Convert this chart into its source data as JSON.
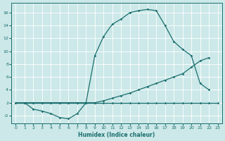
{
  "xlabel": "Humidex (Indice chaleur)",
  "bg_color": "#cce8e8",
  "grid_color": "#ffffff",
  "line_color": "#1a6e6e",
  "xlim": [
    -0.5,
    23.5
  ],
  "ylim": [
    -1.2,
    17.5
  ],
  "xticks": [
    0,
    1,
    2,
    3,
    4,
    5,
    6,
    7,
    8,
    9,
    10,
    11,
    12,
    13,
    14,
    15,
    16,
    17,
    18,
    19,
    20,
    21,
    22,
    23
  ],
  "yticks": [
    0,
    2,
    4,
    6,
    8,
    10,
    12,
    14,
    16
  ],
  "ytick_labels": [
    "-0",
    "2",
    "4",
    "6",
    "8",
    "10",
    "12",
    "14",
    "16"
  ],
  "c1x": [
    0,
    1,
    2,
    3,
    4,
    5,
    6,
    7,
    8,
    9,
    10,
    11,
    12,
    13,
    14,
    15,
    16,
    17,
    18,
    19,
    20,
    21,
    22,
    23
  ],
  "c1y": [
    2.0,
    2.0,
    2.0,
    2.0,
    2.0,
    2.0,
    2.0,
    2.0,
    2.0,
    2.0,
    2.0,
    2.0,
    2.0,
    2.0,
    2.0,
    2.0,
    2.0,
    2.0,
    2.0,
    2.0,
    2.0,
    2.0,
    2.0,
    2.0
  ],
  "c2x": [
    0,
    1,
    2,
    3,
    4,
    5,
    6,
    7,
    8,
    9,
    10,
    11,
    12,
    13,
    14,
    15,
    16,
    17,
    18,
    19,
    20,
    21,
    22
  ],
  "c2y": [
    2.0,
    2.0,
    2.0,
    2.0,
    2.0,
    2.0,
    2.0,
    2.0,
    2.0,
    2.0,
    2.3,
    2.7,
    3.1,
    3.5,
    4.0,
    4.5,
    5.0,
    5.5,
    6.0,
    6.5,
    7.5,
    8.5,
    9.0
  ],
  "c3x": [
    1,
    2,
    3,
    4,
    5,
    6,
    7,
    8,
    9,
    10,
    11,
    12,
    13,
    14,
    15,
    16,
    17,
    18,
    19,
    20,
    21,
    22
  ],
  "c3y": [
    2.0,
    1.0,
    0.7,
    0.3,
    -0.3,
    -0.5,
    0.3,
    2.0,
    9.3,
    12.3,
    14.2,
    15.0,
    16.0,
    16.3,
    16.5,
    16.3,
    14.0,
    11.5,
    10.3,
    9.3,
    5.0,
    4.0
  ]
}
